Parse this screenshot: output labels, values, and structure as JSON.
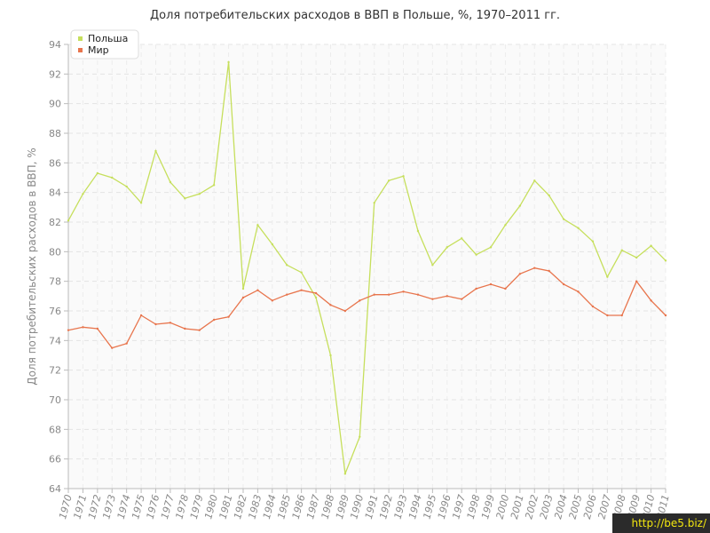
{
  "chart_data": {
    "type": "line",
    "title": "Доля потребительских расходов в ВВП в Польше, %, 1970–2011 гг.",
    "ylabel": "Доля потребительских расходов в ВВП, %",
    "xlabel": "",
    "ylim": [
      64,
      94
    ],
    "yticks": [
      64,
      66,
      68,
      70,
      72,
      74,
      76,
      78,
      80,
      82,
      84,
      86,
      88,
      90,
      92,
      94
    ],
    "grid": true,
    "legend_position": "top-left",
    "categories": [
      "1970",
      "1971",
      "1972",
      "1973",
      "1974",
      "1975",
      "1976",
      "1977",
      "1978",
      "1979",
      "1980",
      "1981",
      "1982",
      "1983",
      "1984",
      "1985",
      "1986",
      "1987",
      "1988",
      "1989",
      "1990",
      "1991",
      "1992",
      "1993",
      "1994",
      "1995",
      "1996",
      "1997",
      "1998",
      "1999",
      "2000",
      "2001",
      "2002",
      "2003",
      "2004",
      "2005",
      "2006",
      "2007",
      "2008",
      "2009",
      "2010",
      "2011"
    ],
    "series": [
      {
        "name": "Польша",
        "color": "#c6df5c",
        "values": [
          82.1,
          83.9,
          85.3,
          85.0,
          84.4,
          83.3,
          86.8,
          84.7,
          83.6,
          83.9,
          84.5,
          92.8,
          77.5,
          81.8,
          80.5,
          79.1,
          78.6,
          76.9,
          73.0,
          65.0,
          67.5,
          83.3,
          84.8,
          85.1,
          81.4,
          79.1,
          80.3,
          80.9,
          79.8,
          80.3,
          81.8,
          83.1,
          84.8,
          83.8,
          82.2,
          81.6,
          80.7,
          78.3,
          80.1,
          79.6,
          80.4,
          79.4
        ]
      },
      {
        "name": "Мир",
        "color": "#e8754d",
        "values": [
          74.7,
          74.9,
          74.8,
          73.5,
          73.8,
          75.7,
          75.1,
          75.2,
          74.8,
          74.7,
          75.4,
          75.6,
          76.9,
          77.4,
          76.7,
          77.1,
          77.4,
          77.2,
          76.4,
          76.0,
          76.7,
          77.1,
          77.1,
          77.3,
          77.1,
          76.8,
          77.0,
          76.8,
          77.5,
          77.8,
          77.5,
          78.5,
          78.9,
          78.7,
          77.8,
          77.3,
          76.3,
          75.7,
          75.7,
          78.0,
          76.7,
          75.7
        ]
      }
    ]
  },
  "watermark": "http://be5.biz/"
}
